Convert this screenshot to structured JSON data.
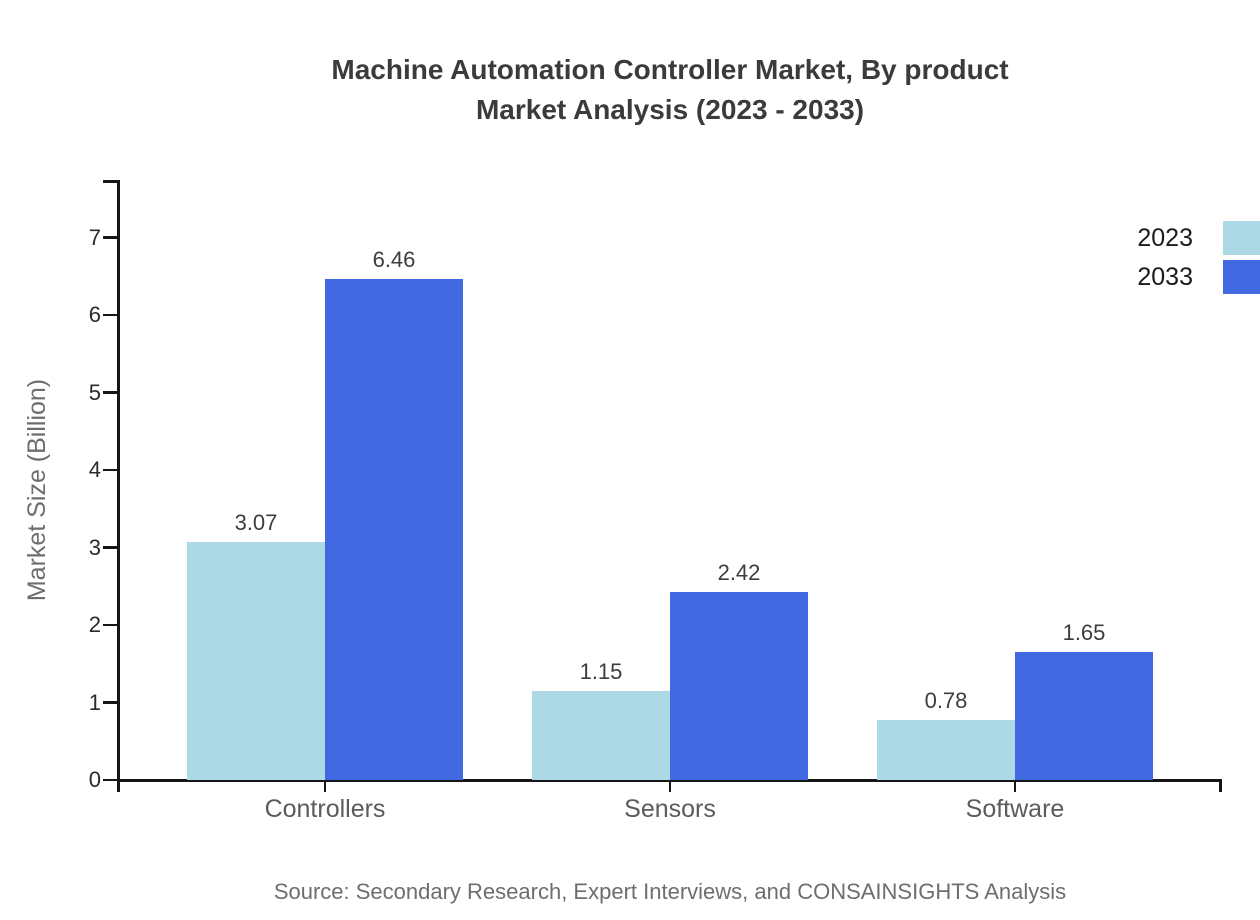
{
  "title": {
    "line1": "Machine Automation Controller Market, By product",
    "line2": "Market Analysis (2023 - 2033)"
  },
  "source_note": "Source: Secondary Research, Expert Interviews, and CONSAINSIGHTS Analysis",
  "colors": {
    "series_2023": "#ADD8E6",
    "series_2033": "#4169E1",
    "axis": "#161616",
    "title_text": "#3b3b3b",
    "muted_text": "#6e6e6e"
  },
  "chart_data": {
    "type": "bar",
    "title": "Machine Automation Controller Market, By product Market Analysis (2023 - 2033)",
    "categories": [
      "Controllers",
      "Sensors",
      "Software"
    ],
    "series": [
      {
        "name": "2023",
        "color": "#ADD8E6",
        "values": [
          3.07,
          1.15,
          0.78
        ]
      },
      {
        "name": "2033",
        "color": "#4169E1",
        "values": [
          6.46,
          2.42,
          1.65
        ]
      }
    ],
    "xlabel": "",
    "ylabel": "Market Size (Billion)",
    "ylim": [
      0,
      7.75
    ],
    "yticks": [
      0,
      1,
      2,
      3,
      4,
      5,
      6,
      7
    ],
    "grid": false,
    "legend_position": "top-right",
    "value_labels": true,
    "value_label_format": "2-decimals",
    "source": "Source: Secondary Research, Expert Interviews, and CONSAINSIGHTS Analysis"
  }
}
